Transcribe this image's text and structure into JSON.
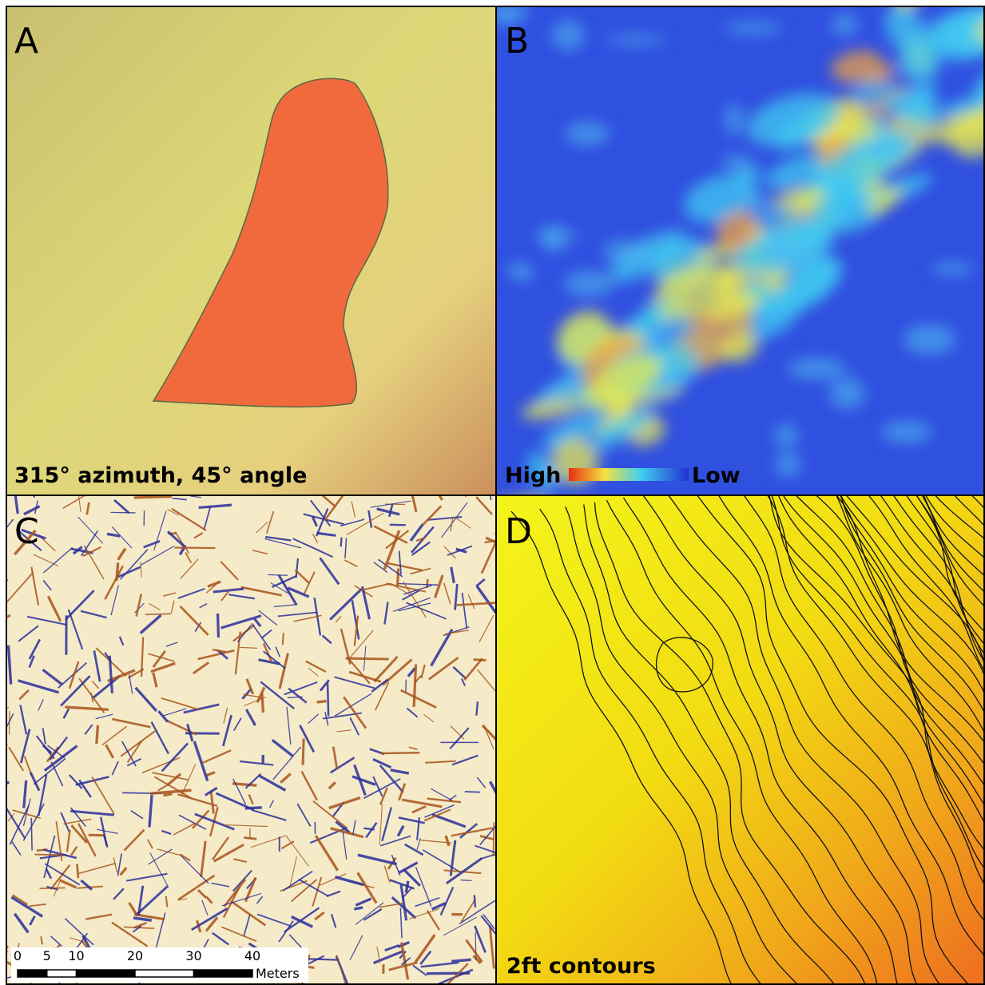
{
  "panels": [
    {
      "label": "A",
      "caption": "315° azimuth, 45° angle"
    },
    {
      "label": "B",
      "legend": {
        "high": "High",
        "low": "Low"
      }
    },
    {
      "label": "C",
      "scale_bar": {
        "ticks": [
          0,
          5,
          10,
          20,
          30,
          40
        ],
        "unit": "Meters"
      }
    },
    {
      "label": "D",
      "caption": "2ft contours"
    }
  ]
}
